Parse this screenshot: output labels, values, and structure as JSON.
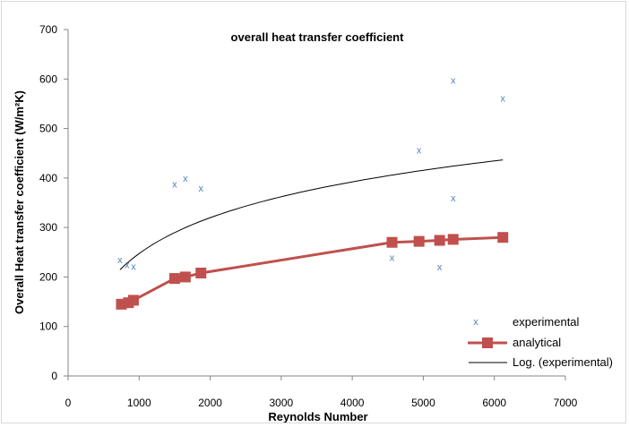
{
  "chart_data": {
    "type": "scatter",
    "title": "overall heat transfer coefficient",
    "xlabel": "Reynolds Number",
    "ylabel": "Overall Heat transfer coefficient (W/m²K)",
    "xlim": [
      0,
      7000
    ],
    "ylim": [
      0,
      700
    ],
    "xticks": [
      0,
      1000,
      2000,
      3000,
      4000,
      5000,
      6000,
      7000
    ],
    "yticks": [
      0,
      100,
      200,
      300,
      400,
      500,
      600,
      700
    ],
    "grid": false,
    "legend_position": "bottom-right",
    "series": [
      {
        "name": "experimental",
        "kind": "scatter",
        "marker": "x",
        "color": "#4f81bd",
        "points": [
          [
            730,
            235
          ],
          [
            830,
            225
          ],
          [
            920,
            222
          ],
          [
            1500,
            388
          ],
          [
            1650,
            400
          ],
          [
            1870,
            380
          ],
          [
            4560,
            240
          ],
          [
            4940,
            457
          ],
          [
            5230,
            221
          ],
          [
            5420,
            598
          ],
          [
            5420,
            360
          ],
          [
            6120,
            562
          ]
        ]
      },
      {
        "name": "analytical",
        "kind": "line",
        "marker": "square",
        "color": "#c0504d",
        "points": [
          [
            750,
            145
          ],
          [
            850,
            148
          ],
          [
            920,
            153
          ],
          [
            1500,
            197
          ],
          [
            1650,
            200
          ],
          [
            1870,
            208
          ],
          [
            4560,
            270
          ],
          [
            4940,
            272
          ],
          [
            5230,
            274
          ],
          [
            5420,
            276
          ],
          [
            6120,
            280
          ]
        ]
      },
      {
        "name": "Log. (experimental)",
        "kind": "trendline",
        "color": "#000000",
        "fit": {
          "a": 104.5,
          "b": -474.5,
          "x_from": 730,
          "x_to": 6120
        }
      }
    ]
  }
}
